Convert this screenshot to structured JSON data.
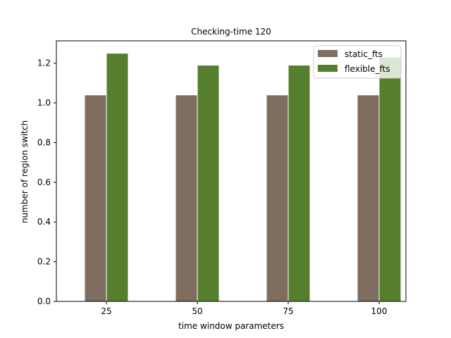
{
  "chart_data": {
    "type": "bar",
    "title": "Checking-time 120",
    "xlabel": "time window parameters",
    "ylabel": "number of region switch",
    "categories": [
      "25",
      "50",
      "75",
      "100"
    ],
    "series": [
      {
        "name": "static_fts",
        "color": "#7f6d5f",
        "values": [
          1.04,
          1.04,
          1.04,
          1.04
        ]
      },
      {
        "name": "flexible_fts",
        "color": "#557f2d",
        "values": [
          1.25,
          1.19,
          1.19,
          1.23
        ]
      }
    ],
    "ylim": [
      0,
      1.3125
    ],
    "yticks": [
      0.0,
      0.2,
      0.4,
      0.6,
      0.8,
      1.0,
      1.2
    ],
    "grid": false,
    "legend": "top-right"
  }
}
